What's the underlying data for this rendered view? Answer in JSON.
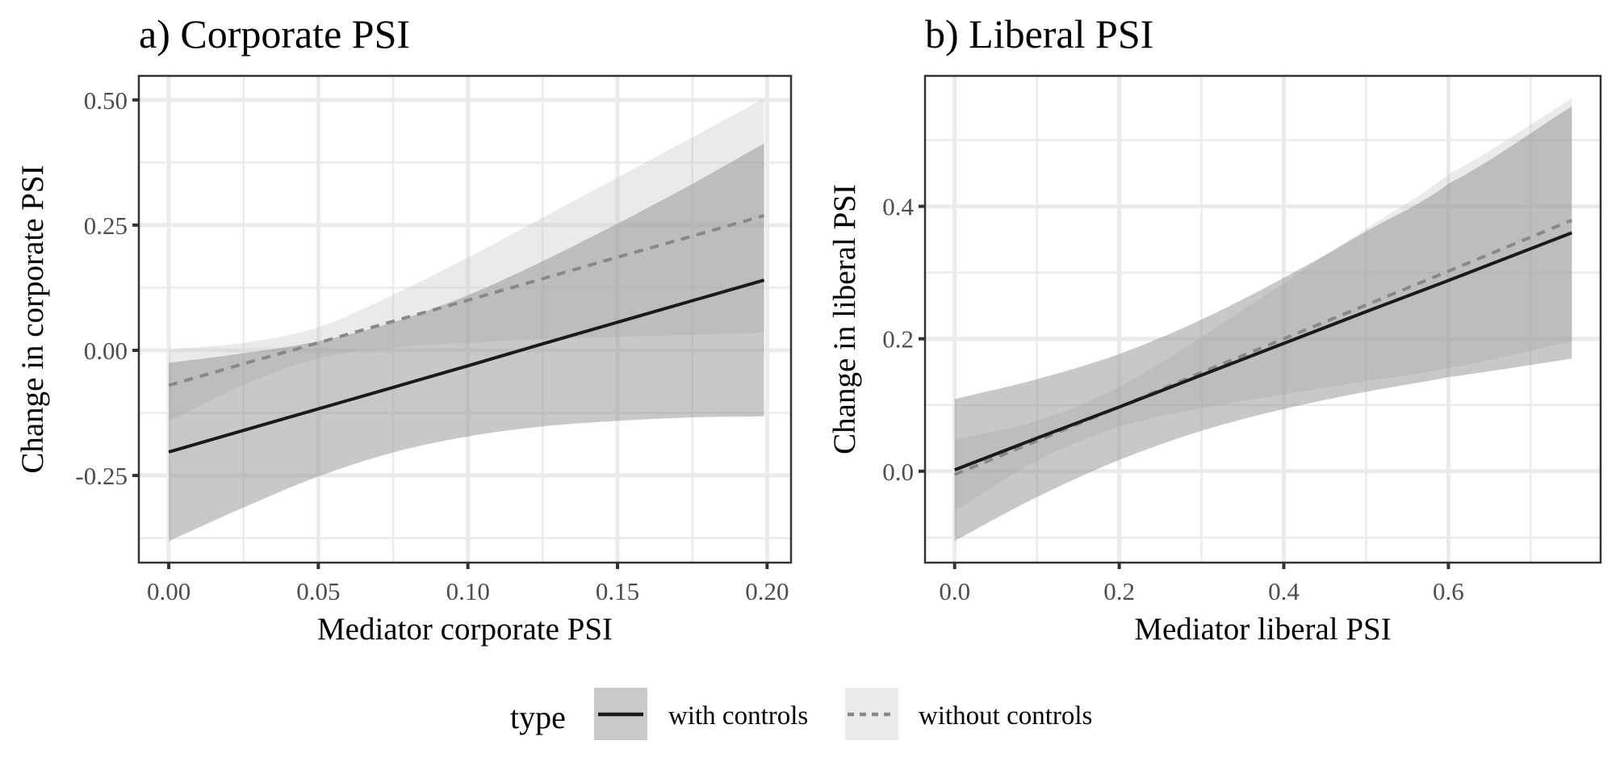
{
  "chart_data": [
    {
      "type": "line",
      "panel": "a",
      "title": "a) Corporate PSI",
      "xlabel": "Mediator corporate PSI",
      "ylabel": "Change in corporate PSI",
      "xlim": [
        -0.01,
        0.208
      ],
      "ylim": [
        -0.424,
        0.548
      ],
      "xticks": [
        0.0,
        0.05,
        0.1,
        0.15,
        0.2
      ],
      "xtick_labels": [
        "0.00",
        "0.05",
        "0.10",
        "0.15",
        "0.20"
      ],
      "xminor": [
        0.025,
        0.075,
        0.125,
        0.175
      ],
      "yticks": [
        -0.25,
        0.0,
        0.25,
        0.5
      ],
      "ytick_labels": [
        "-0.25",
        "0.00",
        "0.25",
        "0.50"
      ],
      "yminor": [
        -0.375,
        -0.125,
        0.125,
        0.375
      ],
      "grid": true,
      "series": [
        {
          "name": "with controls",
          "line": "solid",
          "x": [
            0,
            0.025,
            0.05,
            0.075,
            0.1,
            0.125,
            0.15,
            0.175,
            0.199
          ],
          "y": [
            -0.203,
            -0.16,
            -0.117,
            -0.074,
            -0.031,
            0.013,
            0.056,
            0.099,
            0.14
          ],
          "lower": [
            -0.381,
            -0.314,
            -0.252,
            -0.204,
            -0.172,
            -0.152,
            -0.141,
            -0.134,
            -0.132
          ],
          "upper": [
            -0.025,
            -0.006,
            0.018,
            0.056,
            0.11,
            0.178,
            0.253,
            0.332,
            0.413
          ]
        },
        {
          "name": "without controls",
          "line": "dashed",
          "x": [
            0,
            0.025,
            0.05,
            0.075,
            0.1,
            0.125,
            0.15,
            0.175,
            0.199
          ],
          "y": [
            -0.07,
            -0.027,
            0.015,
            0.058,
            0.1,
            0.143,
            0.186,
            0.228,
            0.269
          ],
          "lower": [
            -0.142,
            -0.069,
            -0.016,
            0.005,
            0.015,
            0.022,
            0.027,
            0.031,
            0.035
          ],
          "upper": [
            0.002,
            0.015,
            0.046,
            0.111,
            0.185,
            0.265,
            0.345,
            0.425,
            0.503
          ]
        }
      ]
    },
    {
      "type": "line",
      "panel": "b",
      "title": "b) Liberal PSI",
      "xlabel": "Mediator liberal PSI",
      "ylabel": "Change in liberal PSI",
      "xlim": [
        -0.036,
        0.785
      ],
      "ylim": [
        -0.138,
        0.597
      ],
      "xticks": [
        0.0,
        0.2,
        0.4,
        0.6
      ],
      "xtick_labels": [
        "0.0",
        "0.2",
        "0.4",
        "0.6"
      ],
      "xminor": [
        0.1,
        0.3,
        0.5,
        0.7
      ],
      "yticks": [
        0.0,
        0.2,
        0.4
      ],
      "ytick_labels": [
        "0.0",
        "0.2",
        "0.4"
      ],
      "yminor": [
        -0.1,
        0.1,
        0.3,
        0.5
      ],
      "grid": true,
      "series": [
        {
          "name": "with controls",
          "line": "solid",
          "x": [
            0,
            0.1,
            0.2,
            0.3,
            0.4,
            0.5,
            0.6,
            0.75
          ],
          "y": [
            0.002,
            0.05,
            0.097,
            0.145,
            0.193,
            0.241,
            0.288,
            0.36
          ],
          "lower": [
            -0.105,
            -0.039,
            0.017,
            0.061,
            0.094,
            0.12,
            0.142,
            0.17
          ],
          "upper": [
            0.109,
            0.139,
            0.177,
            0.229,
            0.292,
            0.362,
            0.434,
            0.551
          ]
        },
        {
          "name": "without controls",
          "line": "dashed",
          "x": [
            0,
            0.1,
            0.2,
            0.3,
            0.4,
            0.5,
            0.6,
            0.75
          ],
          "y": [
            -0.005,
            0.046,
            0.097,
            0.149,
            0.2,
            0.251,
            0.302,
            0.379
          ],
          "lower": [
            -0.06,
            0.016,
            0.067,
            0.095,
            0.116,
            0.136,
            0.156,
            0.196
          ],
          "upper": [
            0.048,
            0.076,
            0.127,
            0.203,
            0.284,
            0.366,
            0.448,
            0.563
          ]
        }
      ]
    }
  ],
  "legend": {
    "title": "type",
    "position": "bottom",
    "items": [
      {
        "label": "with controls",
        "line": "solid"
      },
      {
        "label": "without controls",
        "line": "dashed"
      }
    ]
  },
  "colors": {
    "with_controls_line": "#1a1a1a",
    "without_controls_line": "#888888",
    "with_controls_band": "#8c8c8c",
    "without_controls_band": "#c8c8c8",
    "grid": "#ebebeb",
    "panel_border": "#333333",
    "tick_text": "#4d4d4d"
  }
}
